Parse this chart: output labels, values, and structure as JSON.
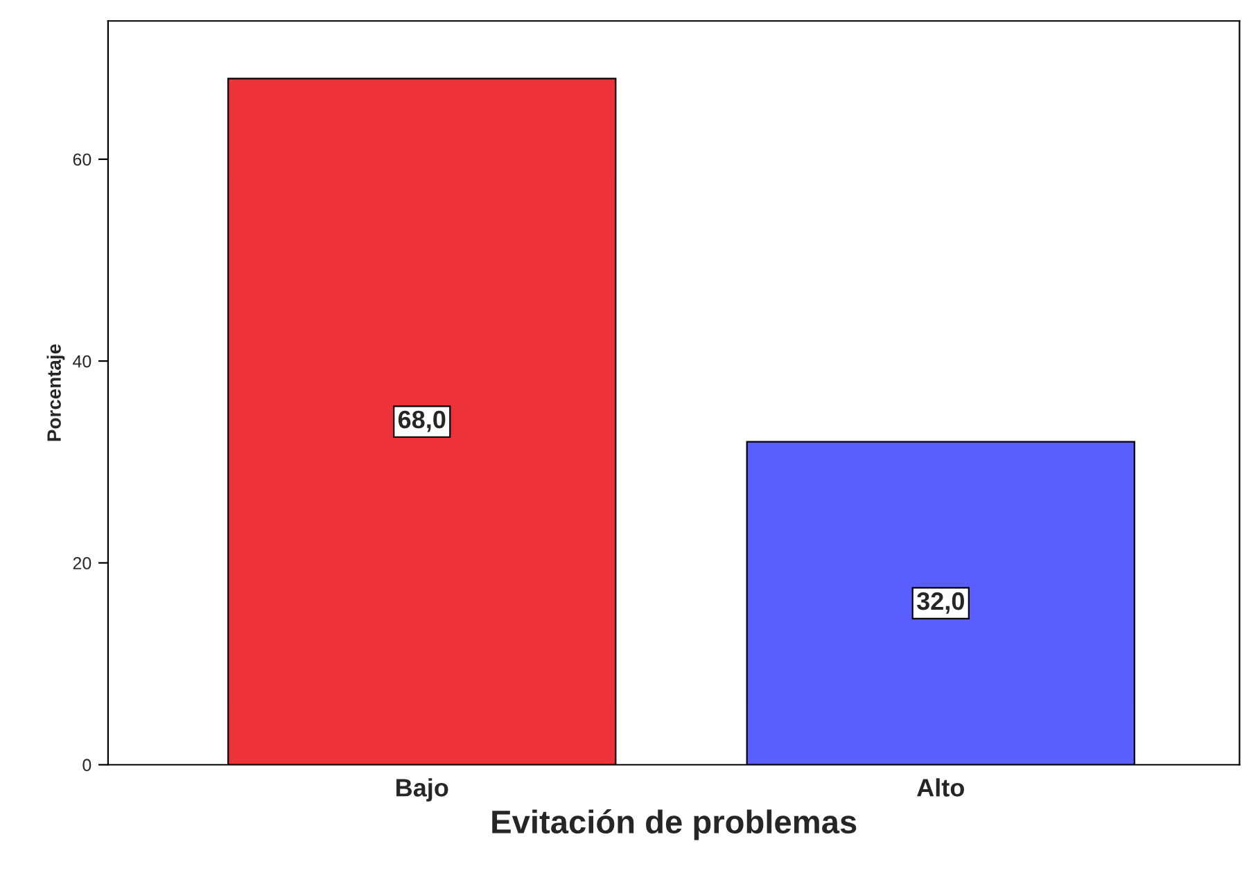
{
  "chart_data": {
    "type": "bar",
    "xlabel": "Evitación de problemas",
    "ylabel": "Porcentaje",
    "categories": [
      "Bajo",
      "Alto"
    ],
    "values": [
      68.0,
      32.0
    ],
    "colors": [
      "#ee3239",
      "#5b5ffd"
    ],
    "value_labels": [
      "68,0",
      "32,0"
    ],
    "ylim": [
      0,
      73.7
    ],
    "yticks": [
      0,
      20,
      40,
      60
    ],
    "grid": false,
    "legend": false
  }
}
